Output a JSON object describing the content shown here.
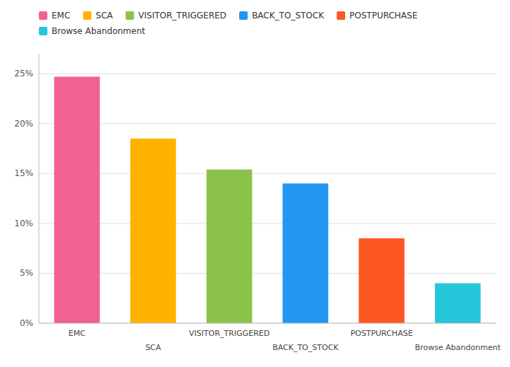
{
  "chart_data": {
    "type": "bar",
    "categories": [
      "EMC",
      "SCA",
      "VISITOR_TRIGGERED",
      "BACK_TO_STOCK",
      "POSTPURCHASE",
      "Browse Abandonment"
    ],
    "values": [
      0.247,
      0.185,
      0.154,
      0.14,
      0.085,
      0.04
    ],
    "colors": [
      "#F06292",
      "#FFB300",
      "#8BC34A",
      "#2196F3",
      "#FF5722",
      "#26C6DA"
    ],
    "ylim": [
      0,
      0.27
    ],
    "yticks": [
      {
        "value": 0.0,
        "label": "0%"
      },
      {
        "value": 0.05,
        "label": "5%"
      },
      {
        "value": 0.1,
        "label": "10%"
      },
      {
        "value": 0.15,
        "label": "15%"
      },
      {
        "value": 0.2,
        "label": "20%"
      },
      {
        "value": 0.25,
        "label": "25%"
      }
    ],
    "grid": true,
    "legend": "top"
  }
}
